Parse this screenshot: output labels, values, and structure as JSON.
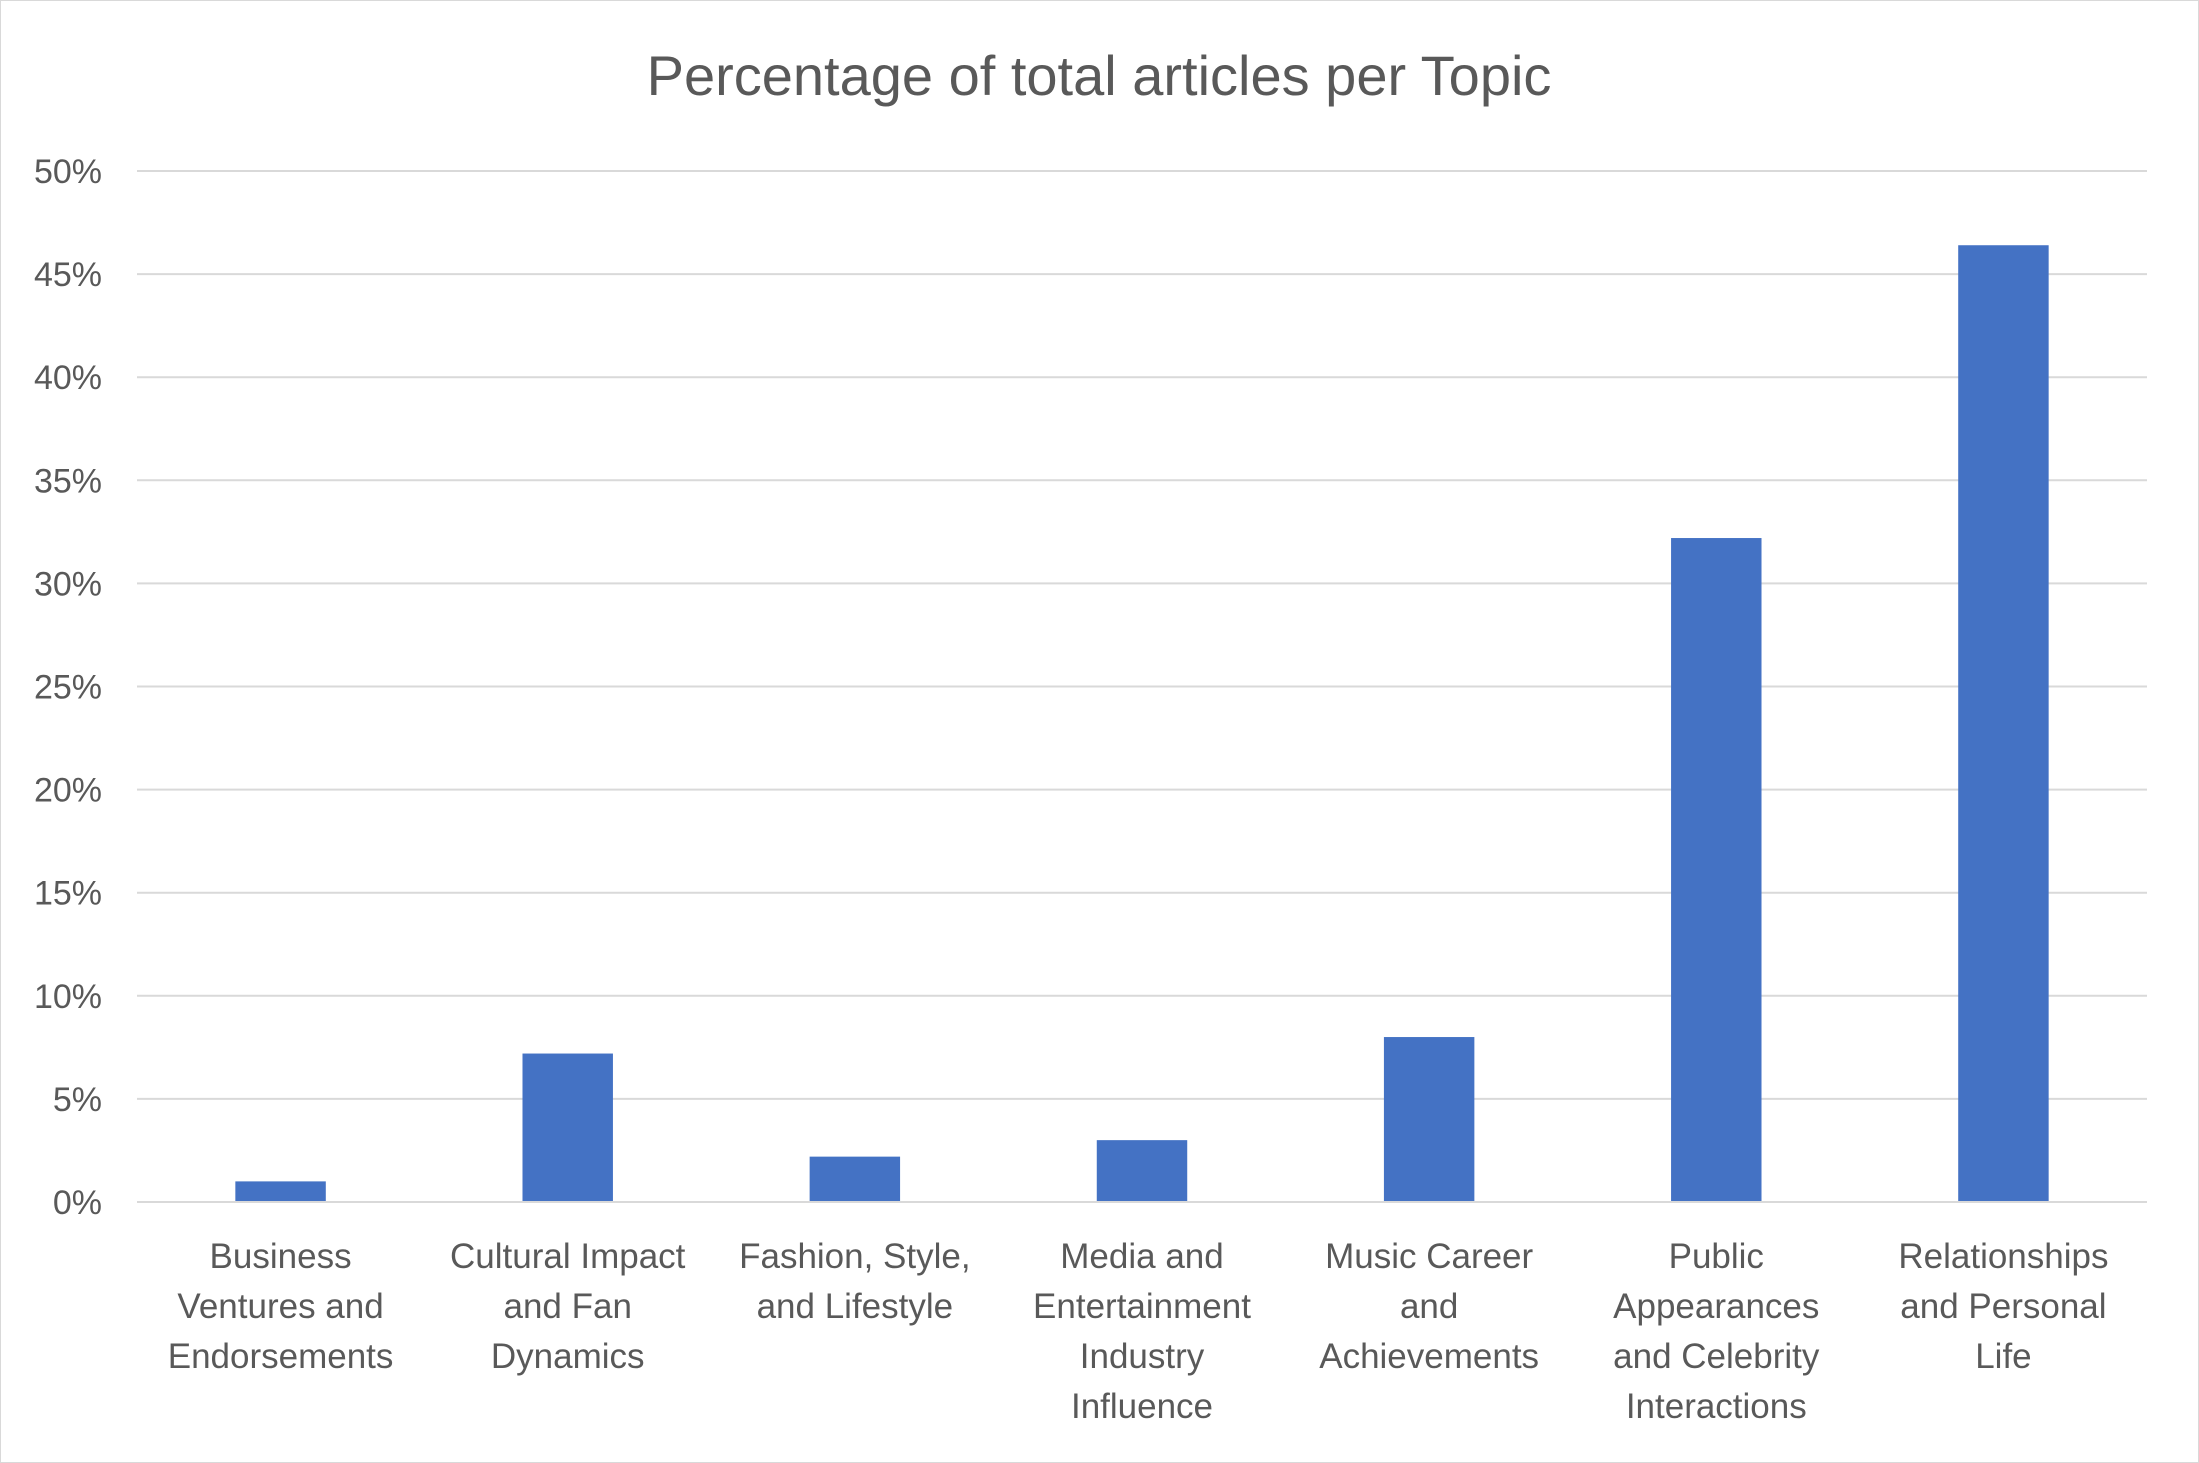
{
  "chart_data": {
    "type": "bar",
    "title": "Percentage of total articles per Topic",
    "xlabel": "",
    "ylabel": "",
    "categories": [
      "Business Ventures and Endorsements",
      "Cultural Impact and Fan Dynamics",
      "Fashion, Style, and Lifestyle",
      "Media and Entertainment Industry Influence",
      "Music Career and Achievements",
      "Public Appearances and Celebrity Interactions",
      "Relationships and Personal Life"
    ],
    "category_label_lines": [
      [
        "Business",
        "Ventures and",
        "Endorsements"
      ],
      [
        "Cultural Impact",
        "and Fan",
        "Dynamics"
      ],
      [
        "Fashion, Style,",
        "and Lifestyle"
      ],
      [
        "Media and",
        "Entertainment",
        "Industry",
        "Influence"
      ],
      [
        "Music Career",
        "and",
        "Achievements"
      ],
      [
        "Public",
        "Appearances",
        "and Celebrity",
        "Interactions"
      ],
      [
        "Relationships",
        "and Personal",
        "Life"
      ]
    ],
    "values": [
      1.0,
      7.2,
      2.2,
      3.0,
      8.0,
      32.2,
      46.4
    ],
    "ylim": [
      0,
      50
    ],
    "yticks": [
      0,
      5,
      10,
      15,
      20,
      25,
      30,
      35,
      40,
      45,
      50
    ],
    "ytick_labels": [
      "0%",
      "5%",
      "10%",
      "15%",
      "20%",
      "25%",
      "30%",
      "35%",
      "40%",
      "45%",
      "50%"
    ],
    "grid": true,
    "legend": "none",
    "bar_color": "#4472C4",
    "grid_color": "#D9D9D9",
    "text_color": "#595959"
  }
}
